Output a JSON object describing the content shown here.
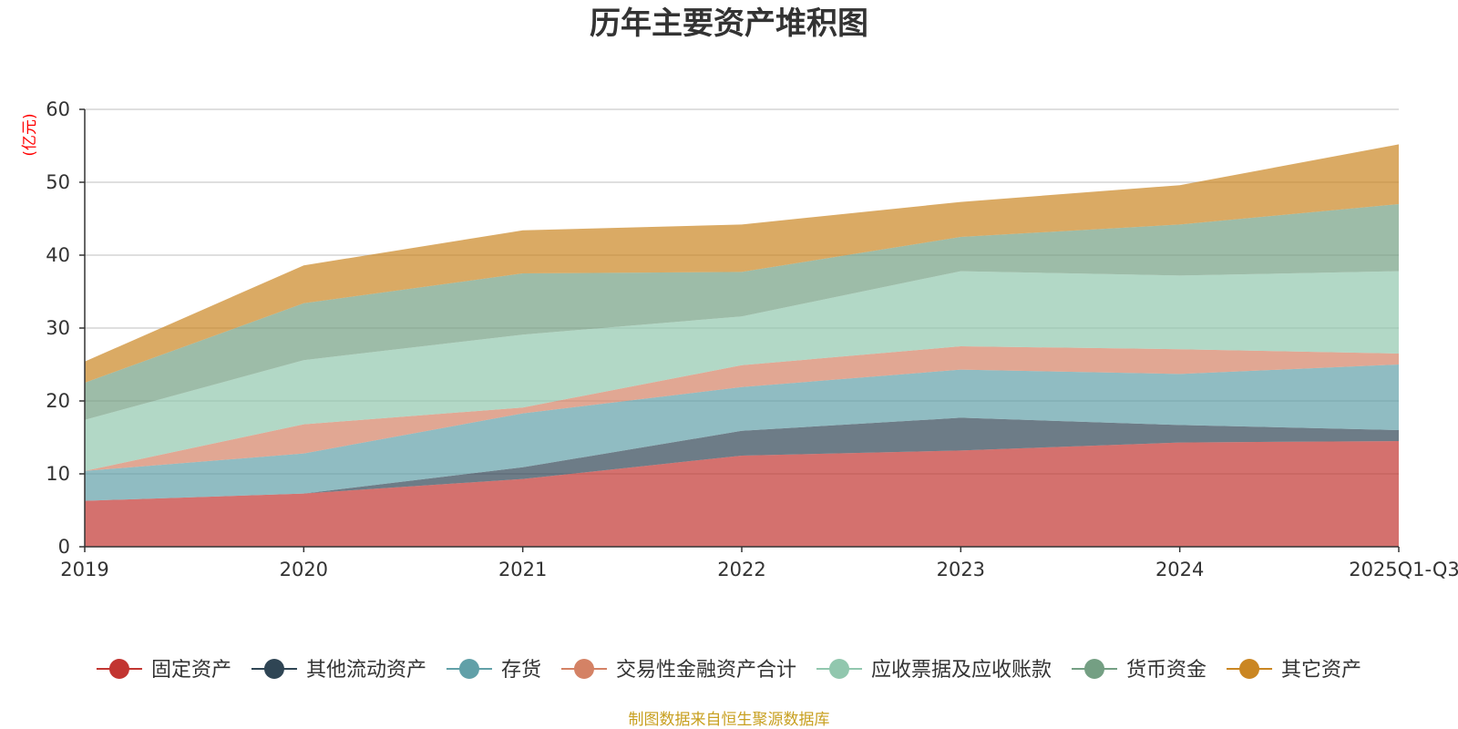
{
  "chart_data": {
    "type": "area",
    "stacked": true,
    "title": "历年主要资产堆积图",
    "unit": "(亿元)",
    "categories": [
      "2019",
      "2020",
      "2021",
      "2022",
      "2023",
      "2024",
      "2025Q1-Q3"
    ],
    "ylim": [
      0,
      60
    ],
    "yticks": [
      0,
      10,
      20,
      30,
      40,
      50,
      60
    ],
    "grid": true,
    "legend_position": "bottom",
    "series": [
      {
        "name": "固定资产",
        "color": "#c23531",
        "values": [
          6.3,
          7.3,
          9.3,
          12.5,
          13.2,
          14.3,
          14.5
        ]
      },
      {
        "name": "其他流动资产",
        "color": "#2f4554",
        "values": [
          0,
          0,
          1.6,
          3.4,
          4.5,
          2.4,
          1.5
        ]
      },
      {
        "name": "存货",
        "color": "#61a0a8",
        "values": [
          4.1,
          5.5,
          7.4,
          6.0,
          6.6,
          7.0,
          9.0
        ]
      },
      {
        "name": "交易性金融资产合计",
        "color": "#d48265",
        "values": [
          0,
          4.0,
          0.8,
          3.0,
          3.2,
          3.4,
          1.5
        ]
      },
      {
        "name": "应收票据及应收账款",
        "color": "#91c7ae",
        "values": [
          7.0,
          8.8,
          10.0,
          6.7,
          10.3,
          10.1,
          11.3
        ]
      },
      {
        "name": "货币资金",
        "color": "#749f83",
        "values": [
          5.1,
          7.8,
          8.4,
          6.1,
          4.7,
          7.0,
          9.2
        ]
      },
      {
        "name": "其它资产",
        "color": "#ca8622",
        "values": [
          2.9,
          5.2,
          5.9,
          6.5,
          4.8,
          5.4,
          8.2
        ]
      }
    ],
    "source_note": "制图数据来自恒生聚源数据库"
  }
}
